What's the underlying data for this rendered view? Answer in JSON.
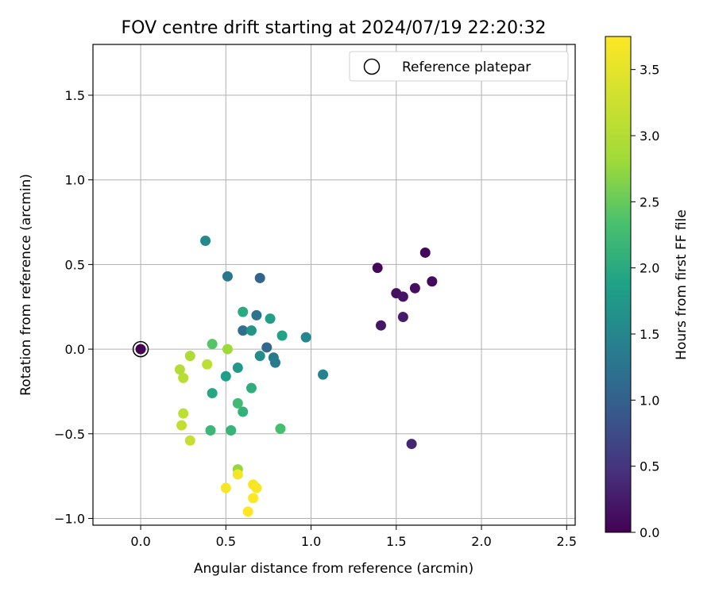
{
  "chart_data": {
    "type": "scatter",
    "title": "FOV centre drift starting at 2024/07/19 22:20:32",
    "xlabel": "Angular distance from reference (arcmin)",
    "ylabel": "Rotation from reference (arcmin)",
    "xlim": [
      -0.28,
      2.55
    ],
    "ylim": [
      -1.04,
      1.8
    ],
    "xticks": [
      0.0,
      0.5,
      1.0,
      1.5,
      2.0,
      2.5
    ],
    "xtick_labels": [
      "0.0",
      "0.5",
      "1.0",
      "1.5",
      "2.0",
      "2.5"
    ],
    "yticks": [
      -1.0,
      -0.5,
      0.0,
      0.5,
      1.0,
      1.5
    ],
    "ytick_labels": [
      "−1.0",
      "−0.5",
      "0.0",
      "0.5",
      "1.0",
      "1.5"
    ],
    "grid": true,
    "colormap": "viridis",
    "colorbar": {
      "label": "Hours from first FF file",
      "range": [
        0.0,
        3.75
      ],
      "ticks": [
        0.0,
        0.5,
        1.0,
        1.5,
        2.0,
        2.5,
        3.0,
        3.5
      ],
      "tick_labels": [
        "0.0",
        "0.5",
        "1.0",
        "1.5",
        "2.0",
        "2.5",
        "3.0",
        "3.5"
      ]
    },
    "legend": {
      "placement": "top-right",
      "entries": [
        "Reference platepar"
      ]
    },
    "reference_point": {
      "x": 0.0,
      "y": 0.0
    },
    "points": [
      {
        "x": 0.0,
        "y": 0.0,
        "hours": 0.0
      },
      {
        "x": 1.39,
        "y": 0.48,
        "hours": 0.05
      },
      {
        "x": 1.67,
        "y": 0.57,
        "hours": 0.07
      },
      {
        "x": 1.71,
        "y": 0.4,
        "hours": 0.1
      },
      {
        "x": 1.61,
        "y": 0.36,
        "hours": 0.12
      },
      {
        "x": 1.5,
        "y": 0.33,
        "hours": 0.15
      },
      {
        "x": 1.54,
        "y": 0.31,
        "hours": 0.18
      },
      {
        "x": 1.41,
        "y": 0.14,
        "hours": 0.2
      },
      {
        "x": 1.54,
        "y": 0.19,
        "hours": 0.25
      },
      {
        "x": 1.59,
        "y": -0.56,
        "hours": 0.35
      },
      {
        "x": 0.7,
        "y": 0.42,
        "hours": 1.05
      },
      {
        "x": 0.74,
        "y": 0.01,
        "hours": 1.1
      },
      {
        "x": 0.6,
        "y": 0.11,
        "hours": 1.2
      },
      {
        "x": 0.68,
        "y": 0.2,
        "hours": 1.25
      },
      {
        "x": 0.51,
        "y": 0.43,
        "hours": 1.3
      },
      {
        "x": 0.78,
        "y": -0.05,
        "hours": 1.3
      },
      {
        "x": 0.79,
        "y": -0.08,
        "hours": 1.35
      },
      {
        "x": 1.07,
        "y": -0.15,
        "hours": 1.45
      },
      {
        "x": 0.97,
        "y": 0.07,
        "hours": 1.5
      },
      {
        "x": 0.38,
        "y": 0.64,
        "hours": 1.55
      },
      {
        "x": 0.7,
        "y": -0.04,
        "hours": 1.6
      },
      {
        "x": 0.65,
        "y": 0.11,
        "hours": 1.7
      },
      {
        "x": 0.57,
        "y": -0.11,
        "hours": 1.75
      },
      {
        "x": 0.76,
        "y": 0.18,
        "hours": 1.85
      },
      {
        "x": 0.5,
        "y": -0.16,
        "hours": 1.85
      },
      {
        "x": 0.83,
        "y": 0.08,
        "hours": 1.9
      },
      {
        "x": 0.42,
        "y": -0.26,
        "hours": 1.95
      },
      {
        "x": 0.6,
        "y": 0.22,
        "hours": 2.0
      },
      {
        "x": 0.65,
        "y": -0.23,
        "hours": 2.05
      },
      {
        "x": 0.6,
        "y": -0.37,
        "hours": 2.1
      },
      {
        "x": 0.53,
        "y": -0.48,
        "hours": 2.15
      },
      {
        "x": 0.41,
        "y": -0.48,
        "hours": 2.2
      },
      {
        "x": 0.57,
        "y": -0.32,
        "hours": 2.25
      },
      {
        "x": 0.82,
        "y": -0.47,
        "hours": 2.3
      },
      {
        "x": 0.42,
        "y": 0.03,
        "hours": 2.4
      },
      {
        "x": 0.57,
        "y": -0.71,
        "hours": 2.75
      },
      {
        "x": 0.51,
        "y": 0.0,
        "hours": 2.8
      },
      {
        "x": 0.29,
        "y": -0.04,
        "hours": 2.95
      },
      {
        "x": 0.23,
        "y": -0.12,
        "hours": 3.0
      },
      {
        "x": 0.25,
        "y": -0.17,
        "hours": 3.05
      },
      {
        "x": 0.39,
        "y": -0.09,
        "hours": 3.1
      },
      {
        "x": 0.25,
        "y": -0.38,
        "hours": 3.1
      },
      {
        "x": 0.24,
        "y": -0.45,
        "hours": 3.15
      },
      {
        "x": 0.29,
        "y": -0.54,
        "hours": 3.2
      },
      {
        "x": 0.57,
        "y": -0.74,
        "hours": 3.65
      },
      {
        "x": 0.5,
        "y": -0.82,
        "hours": 3.68
      },
      {
        "x": 0.66,
        "y": -0.8,
        "hours": 3.7
      },
      {
        "x": 0.68,
        "y": -0.82,
        "hours": 3.7
      },
      {
        "x": 0.66,
        "y": -0.88,
        "hours": 3.72
      },
      {
        "x": 0.63,
        "y": -0.96,
        "hours": 3.75
      }
    ]
  }
}
